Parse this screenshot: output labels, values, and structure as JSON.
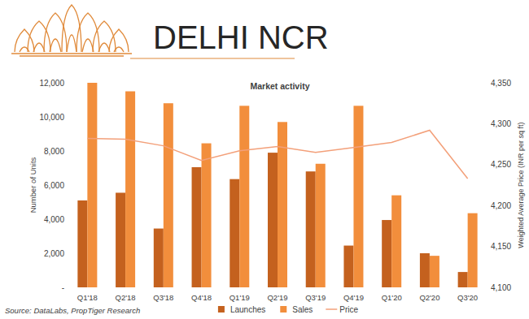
{
  "header": {
    "title": "DELHI NCR"
  },
  "chart_data": {
    "type": "bar",
    "title": "Market activity",
    "source": "Source: DataLabs, PropTiger Research",
    "ylabel": "Number of Units",
    "y2label": "Weighted Average Price (INR per sq ft)",
    "categories": [
      "Q1'18",
      "Q2'18",
      "Q3'18",
      "Q4'18",
      "Q1'19",
      "Q2'19",
      "Q3'19",
      "Q4'19",
      "Q1'20",
      "Q2'20",
      "Q3'20"
    ],
    "series": [
      {
        "name": "Launches",
        "type": "bar",
        "color": "#c4611e",
        "values": [
          5100,
          5550,
          3450,
          7050,
          6350,
          7900,
          6800,
          2450,
          3950,
          2000,
          900
        ]
      },
      {
        "name": "Sales",
        "type": "bar",
        "color": "#f28e3c",
        "values": [
          12000,
          11500,
          10800,
          8450,
          10650,
          9700,
          7250,
          10650,
          5400,
          1850,
          4350
        ]
      },
      {
        "name": "Price",
        "type": "line",
        "color": "#f3a07a",
        "axis": "y2",
        "values": [
          4282,
          4281,
          4273,
          4255,
          4267,
          4272,
          4265,
          4271,
          4277,
          4292,
          4233
        ]
      }
    ],
    "ylim": [
      0,
      12000
    ],
    "yticks": [
      {
        "value": 0,
        "label": "-"
      },
      {
        "value": 2000,
        "label": "2,000"
      },
      {
        "value": 4000,
        "label": "4,000"
      },
      {
        "value": 6000,
        "label": "6,000"
      },
      {
        "value": 8000,
        "label": "8,000"
      },
      {
        "value": 10000,
        "label": "10,000"
      },
      {
        "value": 12000,
        "label": "12,000"
      }
    ],
    "y2lim": [
      4100,
      4350
    ],
    "y2ticks": [
      {
        "value": 4100,
        "label": "4,100"
      },
      {
        "value": 4150,
        "label": "4,150"
      },
      {
        "value": 4200,
        "label": "4,200"
      },
      {
        "value": 4250,
        "label": "4,250"
      },
      {
        "value": 4300,
        "label": "4,300"
      },
      {
        "value": 4350,
        "label": "4,350"
      }
    ],
    "grid": false,
    "legend": "bottom"
  }
}
